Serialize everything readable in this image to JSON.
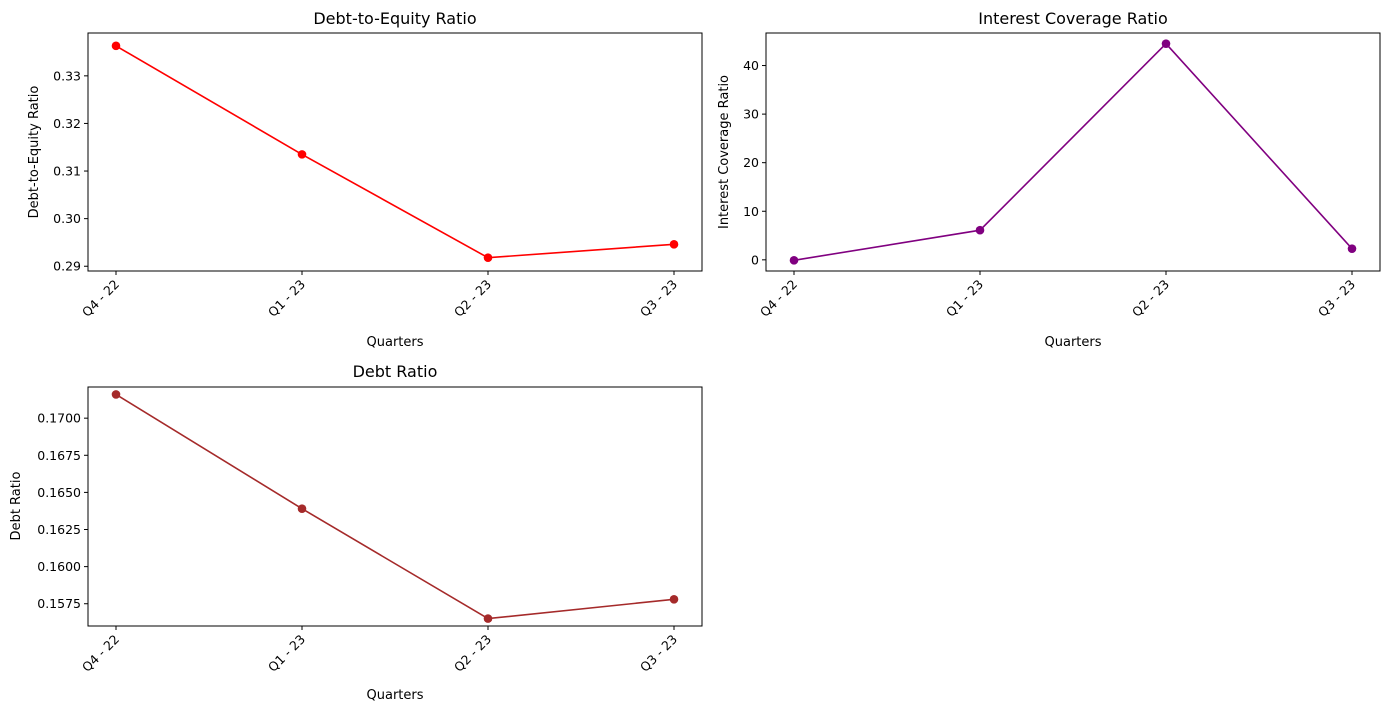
{
  "chart_data": [
    {
      "type": "line",
      "title": "Debt-to-Equity Ratio",
      "xlabel": "Quarters",
      "ylabel": "Debt-to-Equity Ratio",
      "categories": [
        "Q4 - 22",
        "Q1 - 23",
        "Q2 - 23",
        "Q3 - 23"
      ],
      "series": [
        {
          "values": [
            0.3363,
            0.3135,
            0.2918,
            0.2946
          ],
          "color": "#ff0000"
        }
      ],
      "ylim": [
        0.289,
        0.339
      ],
      "yticks": [
        0.29,
        0.3,
        0.31,
        0.32,
        0.33
      ],
      "ytick_labels": [
        "0.29",
        "0.30",
        "0.31",
        "0.32",
        "0.33"
      ],
      "grid": false,
      "legend": false
    },
    {
      "type": "line",
      "title": "Interest Coverage Ratio",
      "xlabel": "Quarters",
      "ylabel": "Interest Coverage Ratio",
      "categories": [
        "Q4 - 22",
        "Q1 - 23",
        "Q2 - 23",
        "Q3 - 23"
      ],
      "series": [
        {
          "values": [
            -0.1,
            6.1,
            44.5,
            2.3
          ],
          "color": "#800080"
        }
      ],
      "ylim": [
        -2.3,
        46.7
      ],
      "yticks": [
        0,
        10,
        20,
        30,
        40
      ],
      "ytick_labels": [
        "0",
        "10",
        "20",
        "30",
        "40"
      ],
      "grid": false,
      "legend": false
    },
    {
      "type": "line",
      "title": "Debt Ratio",
      "xlabel": "Quarters",
      "ylabel": "Debt Ratio",
      "categories": [
        "Q4 - 22",
        "Q1 - 23",
        "Q2 - 23",
        "Q3 - 23"
      ],
      "series": [
        {
          "values": [
            0.1716,
            0.1639,
            0.1565,
            0.1578
          ],
          "color": "#a52a2a"
        }
      ],
      "ylim": [
        0.156,
        0.1721
      ],
      "yticks": [
        0.1575,
        0.16,
        0.1625,
        0.165,
        0.1675,
        0.17
      ],
      "ytick_labels": [
        "0.1575",
        "0.1600",
        "0.1625",
        "0.1650",
        "0.1675",
        "0.1700"
      ],
      "grid": false,
      "legend": false
    }
  ]
}
